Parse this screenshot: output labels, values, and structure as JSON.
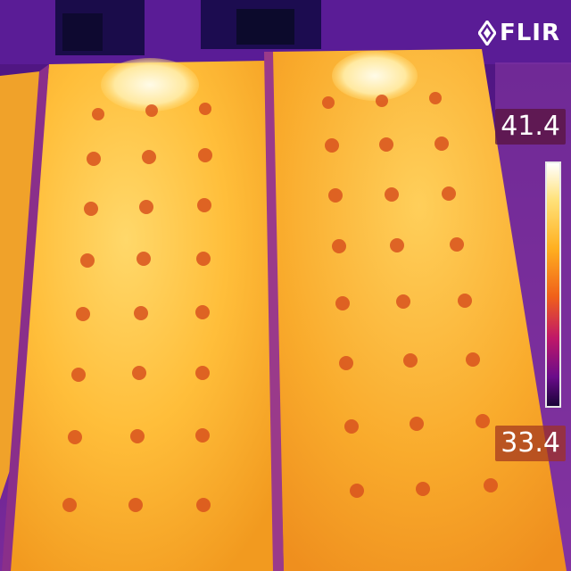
{
  "brand": {
    "logo_text": "FLIR",
    "logo_icon": "flir-diamond-icon"
  },
  "scale": {
    "max_value": "41.4",
    "min_value": "33.4",
    "palette": [
      "#ffffff",
      "#ffe27a",
      "#ffb020",
      "#f0601a",
      "#c01868",
      "#6a0c8a",
      "#1a0438"
    ]
  },
  "scene": {
    "hot_color": "#fff4d0",
    "panel_color": "#f5a623",
    "cell_spot_color": "#d9531e",
    "background_color": "#5b1a8c"
  }
}
